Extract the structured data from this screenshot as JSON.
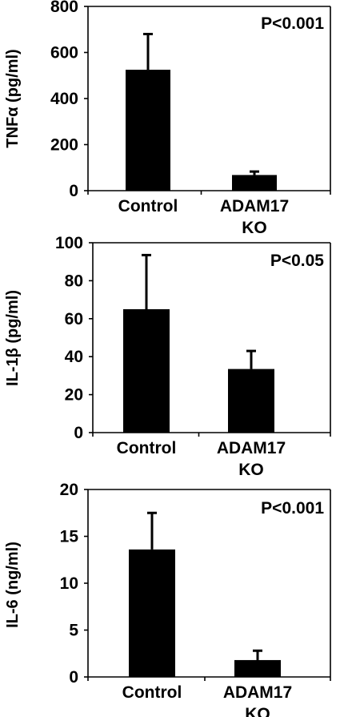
{
  "chart_data": [
    {
      "type": "bar",
      "categories": [
        [
          "Control"
        ],
        [
          "ADAM17",
          "KO"
        ]
      ],
      "values": [
        525,
        68
      ],
      "error": [
        155,
        15
      ],
      "ylabel": "TNFα (pg/ml)",
      "ylim": [
        0,
        800
      ],
      "yticks": [
        0,
        200,
        400,
        600,
        800
      ],
      "annotation": "P<0.001",
      "bar_color": "#000000"
    },
    {
      "type": "bar",
      "categories": [
        [
          "Control"
        ],
        [
          "ADAM17",
          "KO"
        ]
      ],
      "values": [
        65,
        33.5
      ],
      "error": [
        28.5,
        9.5
      ],
      "ylabel": "IL-1β (pg/ml)",
      "ylim": [
        0,
        100
      ],
      "yticks": [
        0,
        20,
        40,
        60,
        80,
        100
      ],
      "annotation": "P<0.05",
      "bar_color": "#000000"
    },
    {
      "type": "bar",
      "categories": [
        [
          "Control"
        ],
        [
          "ADAM17",
          "KO"
        ]
      ],
      "values": [
        13.6,
        1.8
      ],
      "error": [
        3.9,
        1.0
      ],
      "ylabel": "IL-6 (ng/ml)",
      "ylim": [
        0,
        20
      ],
      "yticks": [
        0,
        5,
        10,
        15,
        20
      ],
      "annotation": "P<0.001",
      "bar_color": "#000000"
    }
  ]
}
